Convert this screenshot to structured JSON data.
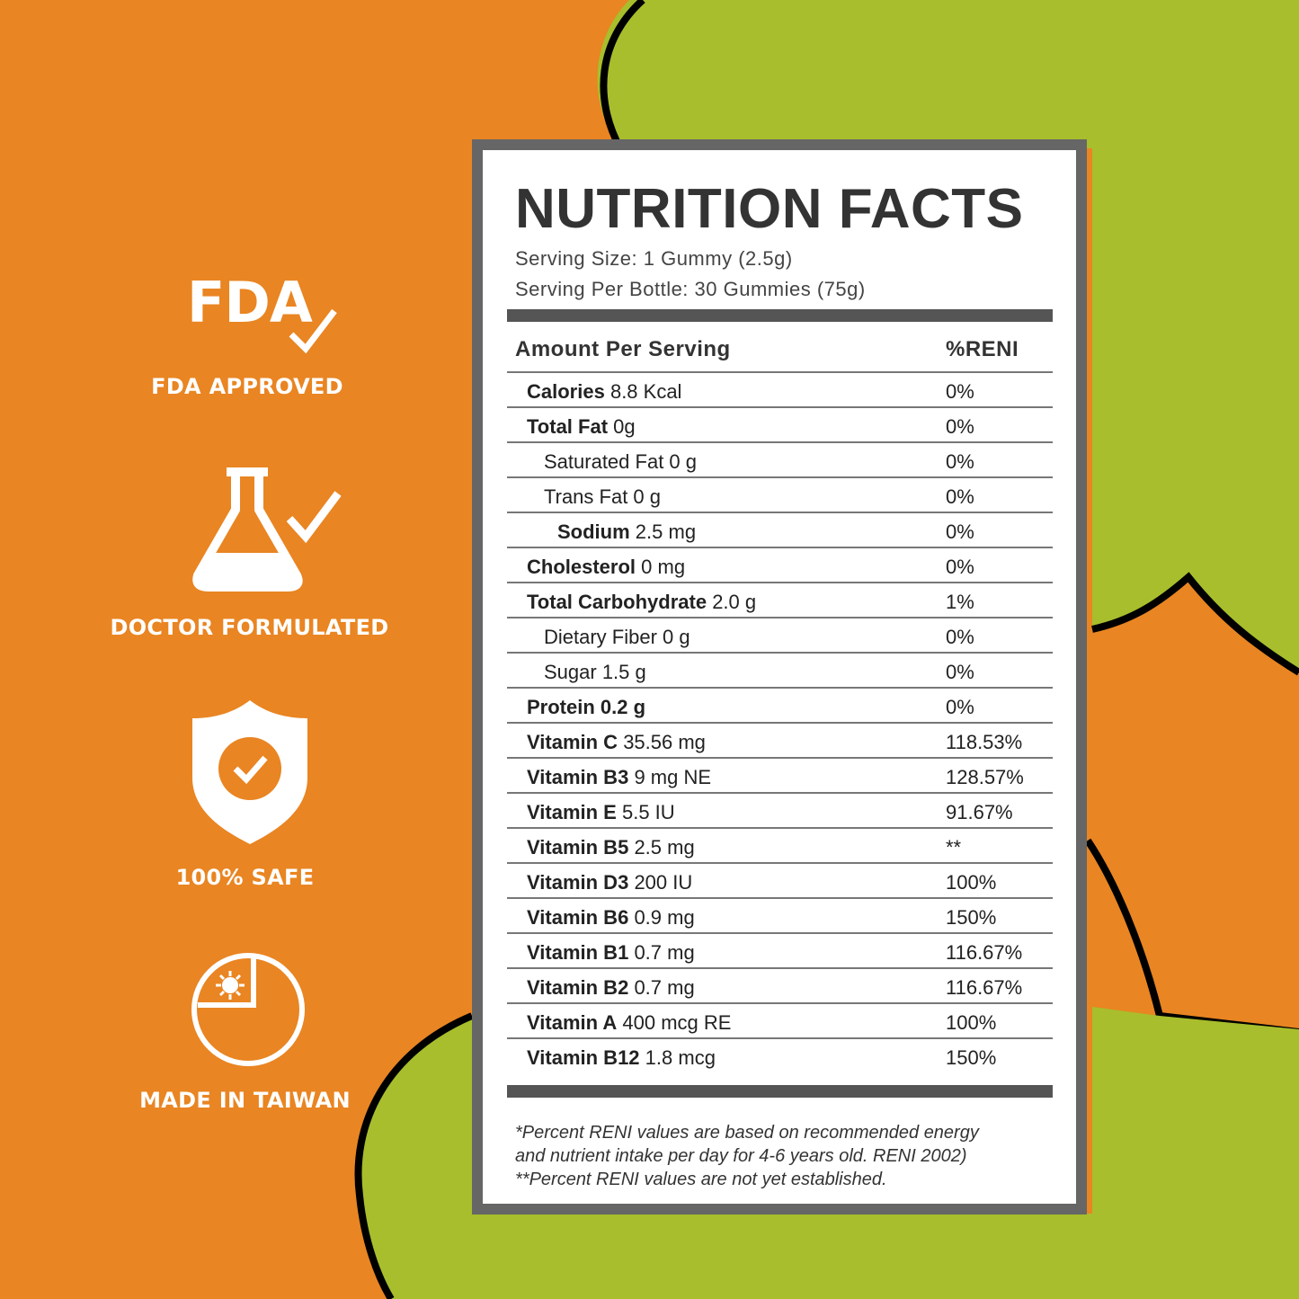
{
  "colors": {
    "orange": "#E98522",
    "green": "#A8BE2C",
    "outline": "#000000",
    "panel_frame": "#666666"
  },
  "badges": [
    {
      "icon": "fda-check-icon",
      "icon_text": "FDA",
      "label": "FDA APPROVED"
    },
    {
      "icon": "flask-check-icon",
      "label": "DOCTOR FORMULATED"
    },
    {
      "icon": "shield-check-icon",
      "label": "100% SAFE"
    },
    {
      "icon": "taiwan-map-icon",
      "label": "MADE IN TAIWAN"
    }
  ],
  "nutrition": {
    "title": "NUTRITION FACTS",
    "serving_size": "Serving Size: 1 Gummy (2.5g)",
    "serving_per_bottle": "Serving Per Bottle: 30 Gummies (75g)",
    "header_amount": "Amount Per Serving",
    "header_percent": "%RENI",
    "rows": [
      {
        "name": "Calories",
        "amount": "8.8 Kcal",
        "pct": "0%",
        "indent": 0
      },
      {
        "name": "Total Fat",
        "amount": "0g",
        "pct": "0%",
        "indent": 0
      },
      {
        "name": "Saturated Fat 0 g",
        "amount": "",
        "pct": "0%",
        "indent": 1,
        "plain": true
      },
      {
        "name": "Trans Fat 0 g",
        "amount": "",
        "pct": "0%",
        "indent": 1,
        "plain": true
      },
      {
        "name": "Sodium",
        "amount": "2.5 mg",
        "pct": "0%",
        "indent": 2
      },
      {
        "name": "Cholesterol",
        "amount": "0 mg",
        "pct": "0%",
        "indent": 0
      },
      {
        "name": "Total Carbohydrate",
        "amount": "2.0 g",
        "pct": "1%",
        "indent": 0
      },
      {
        "name": "Dietary Fiber 0 g",
        "amount": "",
        "pct": "0%",
        "indent": 1,
        "plain": true
      },
      {
        "name": "Sugar 1.5 g",
        "amount": "",
        "pct": "0%",
        "indent": 1,
        "plain": true
      },
      {
        "name": "Protein 0.2 g",
        "amount": "",
        "pct": "0%",
        "indent": 0
      },
      {
        "name": "Vitamin C",
        "amount": "35.56 mg",
        "pct": "118.53%",
        "indent": 0
      },
      {
        "name": "Vitamin B3",
        "amount": "9 mg NE",
        "pct": "128.57%",
        "indent": 0
      },
      {
        "name": "Vitamin E",
        "amount": "5.5 IU",
        "pct": "91.67%",
        "indent": 0
      },
      {
        "name": "Vitamin B5",
        "amount": "2.5 mg",
        "pct": "**",
        "indent": 0
      },
      {
        "name": "Vitamin D3",
        "amount": "200 IU",
        "pct": "100%",
        "indent": 0
      },
      {
        "name": "Vitamin B6",
        "amount": "0.9 mg",
        "pct": "150%",
        "indent": 0
      },
      {
        "name": "Vitamin B1",
        "amount": "0.7 mg",
        "pct": "116.67%",
        "indent": 0
      },
      {
        "name": "Vitamin B2",
        "amount": "0.7 mg",
        "pct": "116.67%",
        "indent": 0
      },
      {
        "name": "Vitamin A",
        "amount": "400 mcg RE",
        "pct": "100%",
        "indent": 0
      },
      {
        "name": "Vitamin B12",
        "amount": "1.8 mcg",
        "pct": "150%",
        "indent": 0
      }
    ],
    "footnote_1": "*Percent RENI values are based on recommended energy",
    "footnote_2": "and nutrient intake per day for 4-6 years old. RENI 2002)",
    "footnote_3": "**Percent RENI values are not yet established."
  }
}
